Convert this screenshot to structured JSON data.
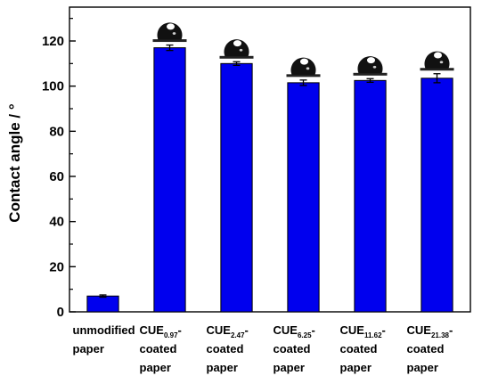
{
  "chart_data": {
    "type": "bar",
    "title": "",
    "xlabel": "",
    "ylabel": "Contact angle / °",
    "ylim": [
      0,
      135
    ],
    "yticks": [
      0,
      20,
      40,
      60,
      80,
      100,
      120
    ],
    "categories": [
      {
        "main": "unmodified",
        "sub": "",
        "tail": "",
        "line2": "paper",
        "line3": ""
      },
      {
        "main": "CUE",
        "sub": "0.97",
        "tail": "-",
        "line2": "coated",
        "line3": "paper"
      },
      {
        "main": "CUE",
        "sub": "2.47",
        "tail": "-",
        "line2": "coated",
        "line3": "paper"
      },
      {
        "main": "CUE",
        "sub": "6.25",
        "tail": "-",
        "line2": "coated",
        "line3": "paper"
      },
      {
        "main": "CUE",
        "sub": "11.62",
        "tail": "-",
        "line2": "coated",
        "line3": "paper"
      },
      {
        "main": "CUE",
        "sub": "21.38",
        "tail": "-",
        "line2": "coated",
        "line3": "paper"
      }
    ],
    "values": [
      7,
      117,
      110,
      101.5,
      102.5,
      103.5
    ],
    "errors": [
      0.5,
      1.2,
      0.8,
      1.2,
      0.8,
      2.0
    ],
    "drop_images": [
      false,
      true,
      true,
      true,
      true,
      true
    ],
    "bar_color": "#0000ee",
    "bar_edge_color": "#000000",
    "grid": false,
    "legend": "none"
  }
}
